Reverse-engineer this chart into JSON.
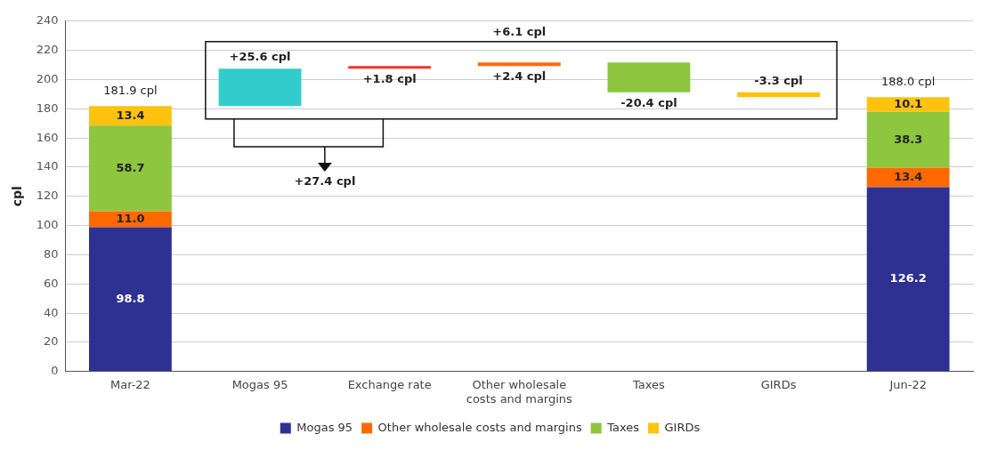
{
  "chart_data": {
    "type": "bar",
    "ylabel": "cpl",
    "categories": [
      "Mar-22",
      "Mogas 95",
      "Exchange rate",
      "Other wholesale costs and margins",
      "Taxes",
      "GIRDs",
      "Jun-22"
    ],
    "stacked": true,
    "series": [
      {
        "name": "Mogas 95",
        "color": "#2e3192",
        "values": [
          98.8,
          null,
          null,
          null,
          null,
          null,
          126.2
        ],
        "value_labels": [
          "98.8",
          null,
          null,
          null,
          null,
          null,
          "126.2"
        ]
      },
      {
        "name": "Other wholesale costs and margins",
        "color": "#ff6a00",
        "values": [
          11.0,
          null,
          null,
          null,
          null,
          null,
          13.4
        ],
        "value_labels": [
          "11.0",
          null,
          null,
          null,
          null,
          null,
          "13.4"
        ]
      },
      {
        "name": "Taxes",
        "color": "#8dc63f",
        "values": [
          58.7,
          null,
          null,
          null,
          null,
          null,
          38.3
        ],
        "value_labels": [
          "58.7",
          null,
          null,
          null,
          null,
          null,
          "38.3"
        ]
      },
      {
        "name": "GIRDs",
        "color": "#ffc20e",
        "values": [
          13.4,
          null,
          null,
          null,
          null,
          null,
          10.1
        ],
        "value_labels": [
          "13.4",
          null,
          null,
          null,
          null,
          null,
          "10.1"
        ]
      },
      {
        "colors": [
          null,
          "#33cccc",
          "#ee3333",
          "#ff6a00",
          "#8dc63f",
          "#ffc20e",
          null
        ],
        "base": [
          null,
          181.9,
          207.5,
          209.3,
          211.7,
          191.3,
          null
        ],
        "values": [
          null,
          25.6,
          1.8,
          2.4,
          -20.4,
          -3.3,
          null
        ],
        "value_labels": [
          null,
          "+25.6 cpl",
          "+1.8 cpl",
          "+2.4 cpl",
          "-20.4 cpl",
          "-3.3 cpl",
          null
        ]
      }
    ],
    "totals": [
      "181.9 cpl",
      null,
      null,
      null,
      null,
      null,
      "188.0 cpl"
    ],
    "annotations": [
      "+6.1 cpl",
      "+27.4 cpl"
    ],
    "ylim": [
      0,
      240
    ],
    "yticks": [
      0,
      20,
      40,
      60,
      80,
      100,
      120,
      140,
      160,
      180,
      200,
      220,
      240
    ],
    "grid": "y",
    "legend": "bottom"
  }
}
